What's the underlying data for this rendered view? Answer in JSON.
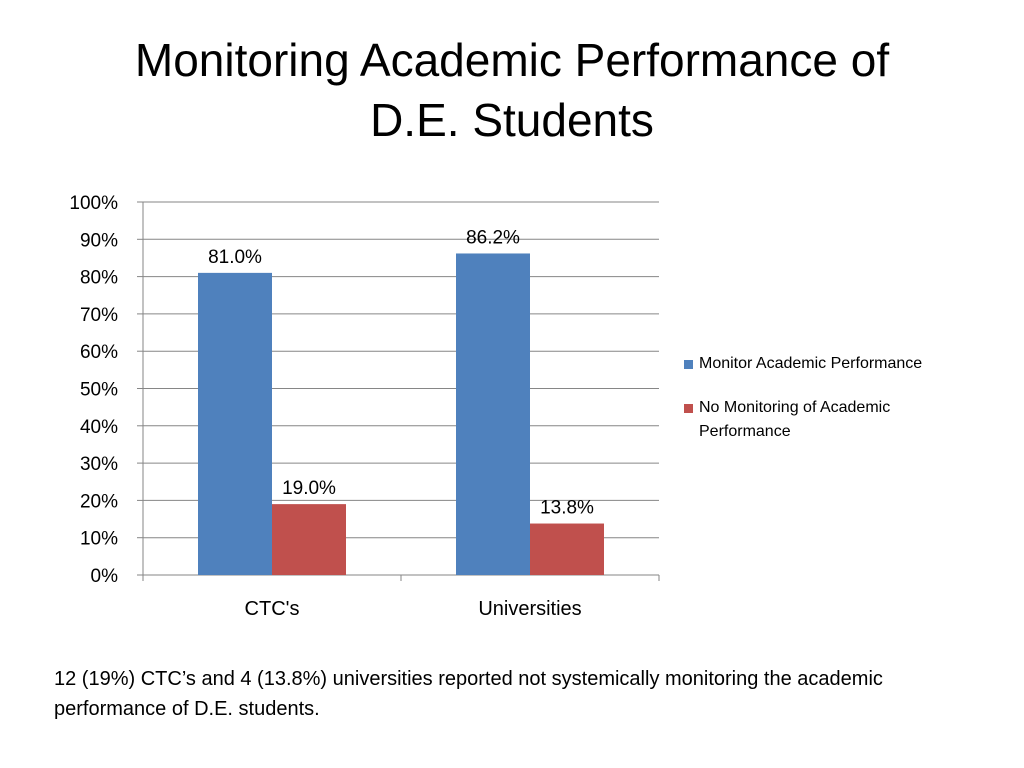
{
  "title": {
    "line1": "Monitoring Academic Performance of",
    "line2": "D.E. Students"
  },
  "chart_data": {
    "type": "bar",
    "categories": [
      "CTC's",
      "Universities"
    ],
    "series": [
      {
        "name": "Monitor Academic Performance",
        "values": [
          81.0,
          86.2
        ],
        "color": "#4F81BD",
        "labels": [
          "81.0%",
          "86.2%"
        ]
      },
      {
        "name": "No Monitoring of Academic Performance",
        "values": [
          19.0,
          13.8
        ],
        "color": "#C0504D",
        "labels": [
          "19.0%",
          "13.8%"
        ]
      }
    ],
    "ylim": [
      0,
      100
    ],
    "yticks": [
      "0%",
      "10%",
      "20%",
      "30%",
      "40%",
      "50%",
      "60%",
      "70%",
      "80%",
      "90%",
      "100%"
    ],
    "grid": true,
    "legend_position": "right"
  },
  "note": "12 (19%) CTC’s and 4 (13.8%) universities reported not systemically monitoring the academic performance of D.E. students."
}
